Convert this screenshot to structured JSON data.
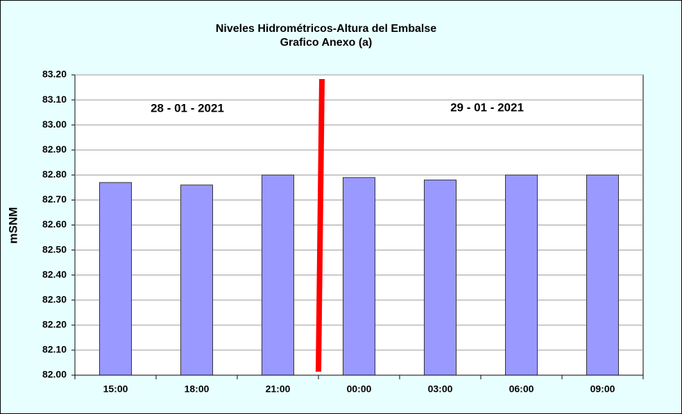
{
  "chart_data": {
    "type": "bar",
    "title": "Niveles Hidrométricos-Altura del Embalse",
    "subtitle": "Grafico Anexo (a)",
    "y_label": "mSNM",
    "annotations": [
      "28 - 01 - 2021",
      "29 - 01 - 2021"
    ],
    "categories": [
      "15:00",
      "18:00",
      "21:00",
      "00:00",
      "03:00",
      "06:00",
      "09:00"
    ],
    "values": [
      82.77,
      82.76,
      82.8,
      82.79,
      82.78,
      82.8,
      82.8
    ],
    "color": "#9999ff",
    "ylim": [
      82.0,
      83.2
    ],
    "yticks": [
      {
        "value": 82.0,
        "label": "82.00"
      },
      {
        "value": 82.1,
        "label": "82.10"
      },
      {
        "value": 82.2,
        "label": "82.20"
      },
      {
        "value": 82.3,
        "label": "82.30"
      },
      {
        "value": 82.4,
        "label": "82.40"
      },
      {
        "value": 82.5,
        "label": "82.50"
      },
      {
        "value": 82.6,
        "label": "82.60"
      },
      {
        "value": 82.7,
        "label": "82.70"
      },
      {
        "value": 82.8,
        "label": "82.80"
      },
      {
        "value": 82.9,
        "label": "82.90"
      },
      {
        "value": 83.0,
        "label": "83.00"
      },
      {
        "value": 83.1,
        "label": "83.10"
      },
      {
        "value": 83.2,
        "label": "83.20"
      }
    ],
    "grid": true
  }
}
